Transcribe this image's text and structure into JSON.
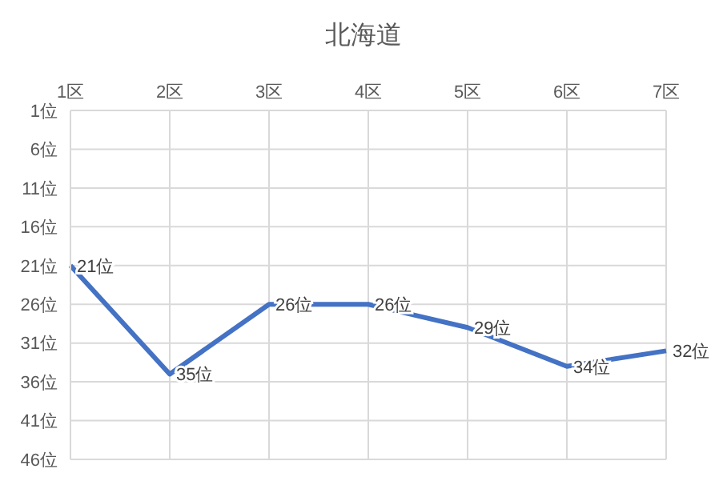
{
  "chart_data": {
    "type": "line",
    "title": "北海道",
    "categories": [
      "1区",
      "2区",
      "3区",
      "4区",
      "5区",
      "6区",
      "7区"
    ],
    "series": [
      {
        "color": "#4472c4",
        "values": [
          21,
          35,
          26,
          26,
          29,
          34,
          32
        ],
        "value_labels": [
          "21位",
          "35位",
          "26位",
          "26位",
          "29位",
          "34位",
          "32位"
        ]
      }
    ],
    "ylim": [
      46,
      1
    ],
    "yticks": [
      {
        "value": 1,
        "label": "1位"
      },
      {
        "value": 6,
        "label": "6位"
      },
      {
        "value": 11,
        "label": "11位"
      },
      {
        "value": 16,
        "label": "16位"
      },
      {
        "value": 21,
        "label": "21位"
      },
      {
        "value": 26,
        "label": "26位"
      },
      {
        "value": 31,
        "label": "31位"
      },
      {
        "value": 36,
        "label": "36位"
      },
      {
        "value": 41,
        "label": "41位"
      },
      {
        "value": 46,
        "label": "46位"
      }
    ],
    "grid": true,
    "marker": "none",
    "line_style": "solid",
    "legend": false
  }
}
